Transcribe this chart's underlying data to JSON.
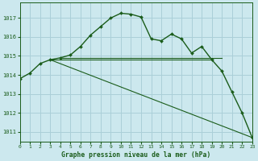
{
  "title": "Graphe pression niveau de la mer (hPa)",
  "background_color": "#cce8ee",
  "grid_color": "#aacfd8",
  "line_color": "#1a5c1a",
  "xlim": [
    0,
    23
  ],
  "ylim": [
    1010.5,
    1017.8
  ],
  "yticks": [
    1011,
    1012,
    1013,
    1014,
    1015,
    1016,
    1017
  ],
  "xticks": [
    0,
    1,
    2,
    3,
    4,
    5,
    6,
    7,
    8,
    9,
    10,
    11,
    12,
    13,
    14,
    15,
    16,
    17,
    18,
    19,
    20,
    21,
    22,
    23
  ],
  "main_x": [
    0,
    1,
    2,
    3,
    4,
    5,
    6,
    7,
    8,
    9,
    10,
    11,
    12,
    13,
    14,
    15,
    16,
    17,
    18,
    19,
    20,
    21,
    22,
    23
  ],
  "main_y": [
    1013.8,
    1014.1,
    1014.6,
    1014.8,
    1014.9,
    1015.05,
    1015.5,
    1016.1,
    1016.55,
    1017.0,
    1017.25,
    1017.2,
    1017.05,
    1015.9,
    1015.8,
    1016.15,
    1015.9,
    1015.15,
    1015.5,
    1014.8,
    1014.2,
    1013.1,
    1012.0,
    1010.7
  ],
  "ref_lines": [
    {
      "x": [
        3,
        19
      ],
      "y": [
        1014.8,
        1014.8
      ]
    },
    {
      "x": [
        4,
        20
      ],
      "y": [
        1014.9,
        1014.9
      ]
    },
    {
      "x": [
        3,
        23
      ],
      "y": [
        1014.8,
        1010.7
      ]
    }
  ]
}
